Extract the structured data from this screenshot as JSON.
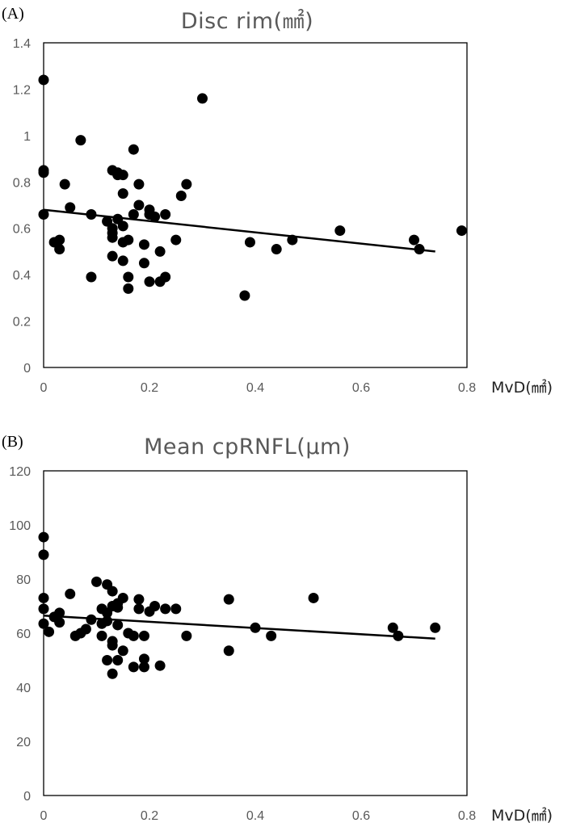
{
  "chart_data": [
    {
      "panel_label": "(A)",
      "type": "scatter",
      "title": "Disc rim(㎟)",
      "xlabel": "MvD(㎟)",
      "ylabel": "",
      "xlim": [
        0,
        0.8
      ],
      "ylim": [
        0,
        1.4
      ],
      "xticks": [
        "0",
        "0.2",
        "0.4",
        "0.6",
        "0.8"
      ],
      "yticks": [
        "0",
        "0.2",
        "0.4",
        "0.6",
        "0.8",
        "1",
        "1.2",
        "1.4"
      ],
      "grid": false,
      "legend": "none",
      "trendline": {
        "x": [
          0,
          0.74
        ],
        "y": [
          0.68,
          0.5
        ]
      },
      "x": [
        0.0,
        0.0,
        0.0,
        0.0,
        0.02,
        0.03,
        0.03,
        0.04,
        0.05,
        0.07,
        0.09,
        0.09,
        0.12,
        0.13,
        0.13,
        0.13,
        0.13,
        0.13,
        0.14,
        0.14,
        0.14,
        0.15,
        0.15,
        0.15,
        0.15,
        0.15,
        0.16,
        0.16,
        0.16,
        0.17,
        0.17,
        0.18,
        0.18,
        0.19,
        0.19,
        0.2,
        0.2,
        0.2,
        0.21,
        0.22,
        0.22,
        0.23,
        0.23,
        0.25,
        0.26,
        0.27,
        0.3,
        0.38,
        0.39,
        0.44,
        0.47,
        0.56,
        0.7,
        0.71,
        0.79
      ],
      "y": [
        1.24,
        0.85,
        0.84,
        0.66,
        0.54,
        0.55,
        0.51,
        0.79,
        0.69,
        0.98,
        0.66,
        0.39,
        0.63,
        0.85,
        0.6,
        0.58,
        0.56,
        0.48,
        0.83,
        0.84,
        0.64,
        0.75,
        0.54,
        0.46,
        0.83,
        0.61,
        0.55,
        0.39,
        0.34,
        0.66,
        0.94,
        0.79,
        0.7,
        0.45,
        0.53,
        0.68,
        0.66,
        0.37,
        0.65,
        0.5,
        0.37,
        0.39,
        0.66,
        0.55,
        0.74,
        0.79,
        1.16,
        0.31,
        0.54,
        0.51,
        0.55,
        0.59,
        0.55,
        0.51,
        0.59
      ]
    },
    {
      "panel_label": "(B)",
      "type": "scatter",
      "title": "Mean cpRNFL(µm)",
      "xlabel": "MvD(㎟)",
      "ylabel": "",
      "xlim": [
        0,
        0.8
      ],
      "ylim": [
        0,
        120
      ],
      "xticks": [
        "0",
        "0.2",
        "0.4",
        "0.6",
        "0.8"
      ],
      "yticks": [
        "0",
        "20",
        "40",
        "60",
        "80",
        "100",
        "120"
      ],
      "grid": false,
      "legend": "none",
      "trendline": {
        "x": [
          0,
          0.74
        ],
        "y": [
          66.5,
          58
        ]
      },
      "x": [
        0.0,
        0.0,
        0.0,
        0.0,
        0.0,
        0.01,
        0.02,
        0.03,
        0.03,
        0.05,
        0.06,
        0.07,
        0.08,
        0.09,
        0.1,
        0.11,
        0.11,
        0.11,
        0.12,
        0.12,
        0.12,
        0.12,
        0.13,
        0.13,
        0.13,
        0.13,
        0.13,
        0.14,
        0.14,
        0.14,
        0.14,
        0.15,
        0.15,
        0.16,
        0.17,
        0.17,
        0.18,
        0.18,
        0.19,
        0.19,
        0.19,
        0.2,
        0.21,
        0.22,
        0.23,
        0.25,
        0.27,
        0.35,
        0.35,
        0.4,
        0.43,
        0.51,
        0.66,
        0.67,
        0.74
      ],
      "y": [
        95.5,
        89,
        73,
        69,
        63.5,
        60.5,
        66,
        67.5,
        64,
        74.5,
        59,
        60,
        61.5,
        65,
        79,
        69,
        63.5,
        59,
        50,
        78,
        67.5,
        64.5,
        45,
        70,
        75.5,
        57,
        55.5,
        50,
        71,
        69.5,
        63,
        73,
        53.5,
        60,
        47.5,
        59,
        72.5,
        69,
        59,
        47.5,
        50.5,
        68,
        70,
        48,
        69,
        69,
        59,
        72.5,
        53.5,
        62,
        59,
        73,
        62,
        59,
        62
      ]
    }
  ]
}
